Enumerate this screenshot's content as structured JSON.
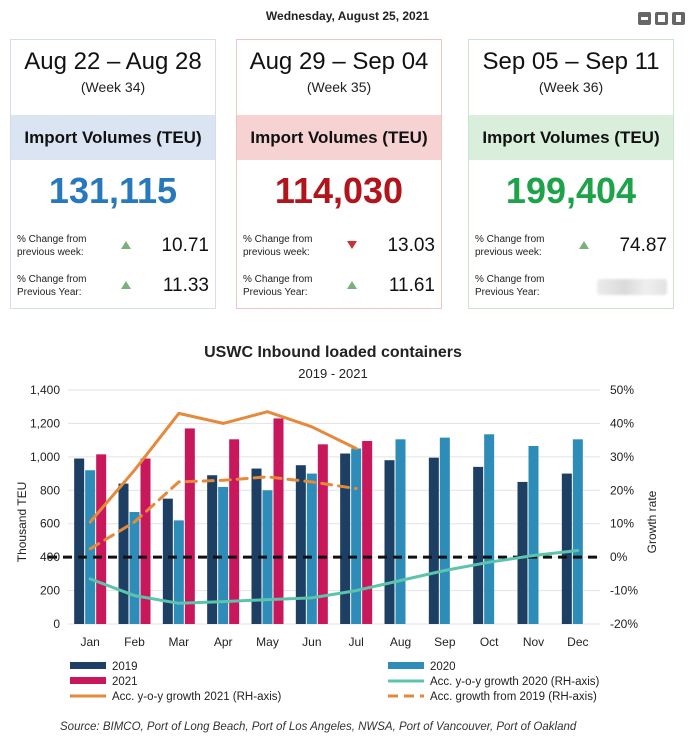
{
  "header": {
    "date": "Wednesday, August 25, 2021"
  },
  "window_icons": [
    "minimize-icon",
    "maximize-icon",
    "trash-icon"
  ],
  "cards": [
    {
      "range": "Aug 22 – Aug 28",
      "week": "(Week 34)",
      "band_label": "Import Volumes (TEU)",
      "value": "131,115",
      "border_color": "#d4dfee",
      "band_color": "#dbe4f3",
      "value_color": "#2878be",
      "rows": [
        {
          "label_line1": "% Change from",
          "label_line2": "previous week:",
          "direction": "up",
          "value": "10.71"
        },
        {
          "label_line1": "% Change from",
          "label_line2": "Previous Year:",
          "direction": "up",
          "value": "11.33"
        }
      ]
    },
    {
      "range": "Aug 29 – Sep 04",
      "week": "(Week 35)",
      "band_label": "Import Volumes (TEU)",
      "value": "114,030",
      "border_color": "#efc4c4",
      "band_color": "#f6d2d2",
      "value_color": "#b1141b",
      "rows": [
        {
          "label_line1": "% Change from",
          "label_line2": "previous week:",
          "direction": "down",
          "value": "13.03"
        },
        {
          "label_line1": "% Change from",
          "label_line2": "Previous Year:",
          "direction": "up",
          "value": "11.61"
        }
      ]
    },
    {
      "range": "Sep 05 – Sep 11",
      "week": "(Week 36)",
      "band_label": "Import Volumes (TEU)",
      "value": "199,404",
      "border_color": "#c9e7cd",
      "band_color": "#d9efdc",
      "value_color": "#1ea34a",
      "rows": [
        {
          "label_line1": "% Change from",
          "label_line2": "previous week:",
          "direction": "up",
          "value": "74.87"
        },
        {
          "label_line1": "% Change from",
          "label_line2": "Previous Year:",
          "direction": "none",
          "value": ""
        }
      ]
    }
  ],
  "chart_data": {
    "type": "bar",
    "title": "USWC Inbound loaded containers",
    "subtitle": "2019 - 2021",
    "ylabel": "Thousand TEU",
    "y2label": "Growth rate",
    "ylim": [
      0,
      1400
    ],
    "y2lim": [
      -20,
      50
    ],
    "yticks": [
      "0",
      "200",
      "400",
      "600",
      "800",
      "1,000",
      "1,200",
      "1,400"
    ],
    "y2ticks": [
      "-20%",
      "-10%",
      "0%",
      "10%",
      "20%",
      "30%",
      "40%",
      "50%"
    ],
    "categories": [
      "Jan",
      "Feb",
      "Mar",
      "Apr",
      "May",
      "Jun",
      "Jul",
      "Aug",
      "Sep",
      "Oct",
      "Nov",
      "Dec"
    ],
    "series": [
      {
        "name": "2019",
        "kind": "bar",
        "color": "#1c3f63",
        "values": [
          990,
          840,
          750,
          890,
          930,
          950,
          1020,
          980,
          995,
          940,
          850,
          900
        ]
      },
      {
        "name": "2020",
        "kind": "bar",
        "color": "#2e8db8",
        "values": [
          920,
          670,
          620,
          820,
          800,
          900,
          1050,
          1105,
          1115,
          1135,
          1065,
          1105
        ]
      },
      {
        "name": "2021",
        "kind": "bar",
        "color": "#c8175a",
        "values": [
          1015,
          990,
          1170,
          1105,
          1230,
          1075,
          1095,
          null,
          null,
          null,
          null,
          null
        ]
      },
      {
        "name": "Acc. y-o-y growth 2020 (RH-axis)",
        "kind": "line",
        "color": "#5cc4ad",
        "dash": "solid",
        "values": [
          -6.5,
          -11.5,
          -13.8,
          -13.3,
          -12.7,
          -12.2,
          -10,
          -7,
          -4,
          -1.5,
          0.5,
          2
        ]
      },
      {
        "name": "Acc. y-o-y growth 2021 (RH-axis)",
        "kind": "line",
        "color": "#e58a3a",
        "dash": "solid",
        "values": [
          10.5,
          26,
          43,
          40,
          43.5,
          39,
          32.5,
          null,
          null,
          null,
          null,
          null
        ]
      },
      {
        "name": "Acc. growth from 2019 (RH-axis)",
        "kind": "line",
        "color": "#e58a3a",
        "dash": "dashed",
        "values": [
          2.5,
          10.5,
          22.5,
          23,
          24,
          22.5,
          20.5,
          null,
          null,
          null,
          null,
          null
        ]
      }
    ],
    "reference_line": {
      "y2": 0,
      "color": "#111111",
      "style": "dashed"
    },
    "legend_position": "bottom",
    "grid": true,
    "source": "Source: BIMCO, Port of Long Beach, Port of Los Angeles, NWSA, Port of Vancouver, Port of Oakland"
  }
}
